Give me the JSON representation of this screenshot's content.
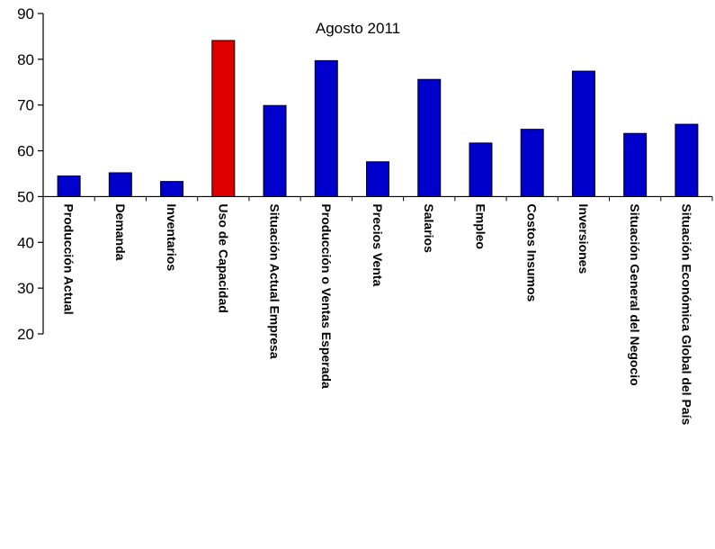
{
  "chart_data": {
    "type": "bar",
    "title": "Agosto 2011",
    "xlabel": "",
    "ylabel": "",
    "ylim": [
      20,
      90
    ],
    "yticks": [
      20,
      30,
      40,
      50,
      60,
      70,
      80,
      90
    ],
    "baseline": 50,
    "grid": false,
    "legend": "none",
    "categories": [
      "Producción Actual",
      "Demanda",
      "Inventarios",
      "Uso de Capacidad",
      "Situación Actual Empresa",
      "Producción o Ventas Esperada",
      "Precios Venta",
      "Salarios",
      "Empleo",
      "Costos Insumos",
      "Inversiones",
      "Situación General del Negocio",
      "Situación Económica Global del País"
    ],
    "values": [
      54.5,
      55.2,
      53.3,
      84.1,
      69.9,
      79.7,
      57.6,
      75.6,
      61.7,
      64.7,
      77.4,
      63.8,
      65.8
    ],
    "highlight_index": 3,
    "colors": {
      "bar": "#0000cc",
      "highlight": "#dd0000",
      "axis": "#000000"
    }
  }
}
